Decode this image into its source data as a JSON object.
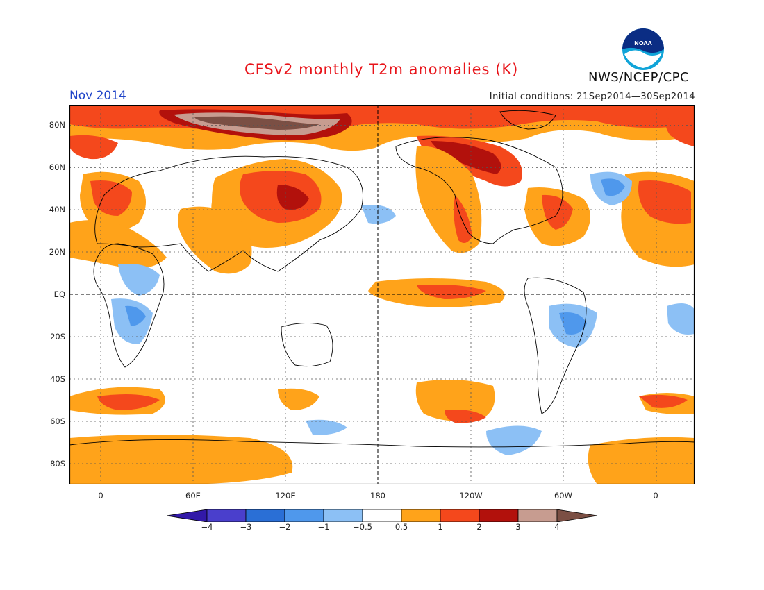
{
  "header": {
    "title": "CFSv2 monthly T2m anomalies (K)",
    "month": "Nov 2014",
    "initial_conditions": "Initial conditions: 21Sep2014—30Sep2014",
    "organization": "NWS/NCEP/CPC",
    "logo_text": "NOAA"
  },
  "map": {
    "lat_labels": [
      "80N",
      "60N",
      "40N",
      "20N",
      "EQ",
      "20S",
      "40S",
      "60S",
      "80S"
    ],
    "lon_labels": [
      "0",
      "60E",
      "120E",
      "180",
      "120W",
      "60W",
      "0"
    ]
  },
  "colorbar": {
    "labels": [
      "−4",
      "−3",
      "−2",
      "−1",
      "−0.5",
      "0.5",
      "1",
      "2",
      "3",
      "4"
    ],
    "colors": [
      "#3219a8",
      "#4a3fcc",
      "#2a6fd6",
      "#4f98ec",
      "#8cc0f5",
      "#ffffff",
      "#ffa31a",
      "#f4481c",
      "#b2110c",
      "#c79c90",
      "#7b4f44"
    ]
  }
}
